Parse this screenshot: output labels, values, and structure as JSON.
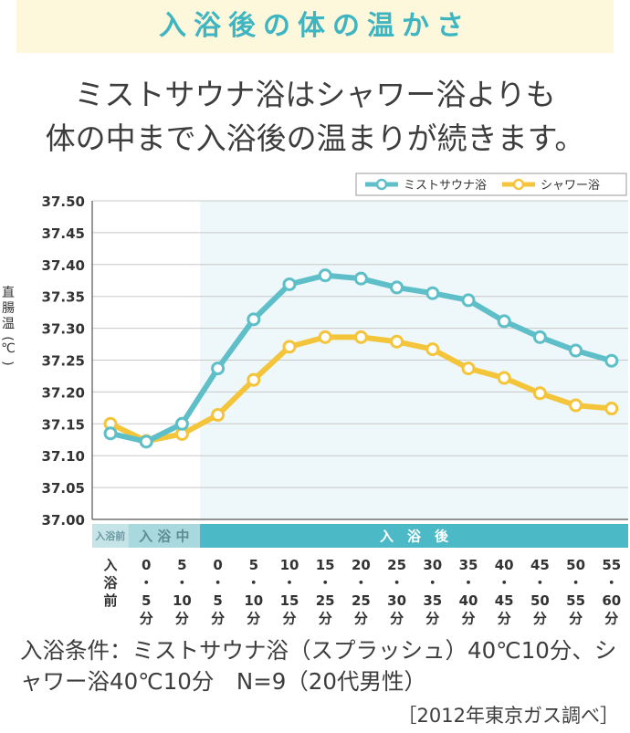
{
  "title": "入浴後の体の温かさ",
  "headline": {
    "line1": "ミストサウナ浴はシャワー浴よりも",
    "line2": "体の中まで入浴後の温まりが続きます。"
  },
  "chart_data": {
    "type": "line",
    "ylabel": "直腸温（℃）",
    "ylim": [
      37.0,
      37.5
    ],
    "y_ticks": [
      "37.50",
      "37.45",
      "37.40",
      "37.35",
      "37.30",
      "37.25",
      "37.20",
      "37.15",
      "37.10",
      "37.05",
      "37.00"
    ],
    "categories": [
      "入浴前",
      "0・5分",
      "5・10分",
      "0・5分",
      "5・10分",
      "10・15分",
      "15・25分",
      "20・25分",
      "25・30分",
      "30・35分",
      "35・40分",
      "40・45分",
      "45・50分",
      "50・55分",
      "55・60分"
    ],
    "x_labels": [
      [
        "入",
        "浴",
        "前"
      ],
      [
        "0",
        "・",
        "5",
        "分"
      ],
      [
        "5",
        "・",
        "10",
        "分"
      ],
      [
        "0",
        "・",
        "5",
        "分"
      ],
      [
        "5",
        "・",
        "10",
        "分"
      ],
      [
        "10",
        "・",
        "15",
        "分"
      ],
      [
        "15",
        "・",
        "25",
        "分"
      ],
      [
        "20",
        "・",
        "25",
        "分"
      ],
      [
        "25",
        "・",
        "30",
        "分"
      ],
      [
        "30",
        "・",
        "35",
        "分"
      ],
      [
        "35",
        "・",
        "40",
        "分"
      ],
      [
        "40",
        "・",
        "45",
        "分"
      ],
      [
        "45",
        "・",
        "50",
        "分"
      ],
      [
        "50",
        "・",
        "55",
        "分"
      ],
      [
        "55",
        "・",
        "60",
        "分"
      ]
    ],
    "phases": [
      {
        "label": "入浴前",
        "from": 0,
        "to": 0,
        "color": "#c5e4e8",
        "text_color": "#6a9aa2"
      },
      {
        "label": "入 浴 中",
        "from": 1,
        "to": 2,
        "color": "#a7d9df",
        "text_color": "#5e8c93"
      },
      {
        "label": "入　浴　後",
        "from": 3,
        "to": 14,
        "color": "#4cbac6",
        "text_color": "#ffffff"
      }
    ],
    "series": [
      {
        "name": "ミストサウナ浴",
        "color": "#5ebfc9",
        "values": [
          37.135,
          37.122,
          37.15,
          37.237,
          37.314,
          37.369,
          37.383,
          37.378,
          37.364,
          37.355,
          37.344,
          37.311,
          37.286,
          37.265,
          37.249
        ]
      },
      {
        "name": "シャワー浴",
        "color": "#f4c53a",
        "values": [
          37.15,
          37.123,
          37.134,
          37.164,
          37.219,
          37.271,
          37.286,
          37.286,
          37.279,
          37.267,
          37.237,
          37.222,
          37.198,
          37.179,
          37.174
        ]
      }
    ],
    "legend_position": "top-right",
    "shaded_region": "入浴後",
    "grid": true
  },
  "footnote": "入浴条件：ミストサウナ浴（スプラッシュ）40℃10分、シャワー浴40℃10分　N=9（20代男性）",
  "source": "［2012年東京ガス調べ］"
}
